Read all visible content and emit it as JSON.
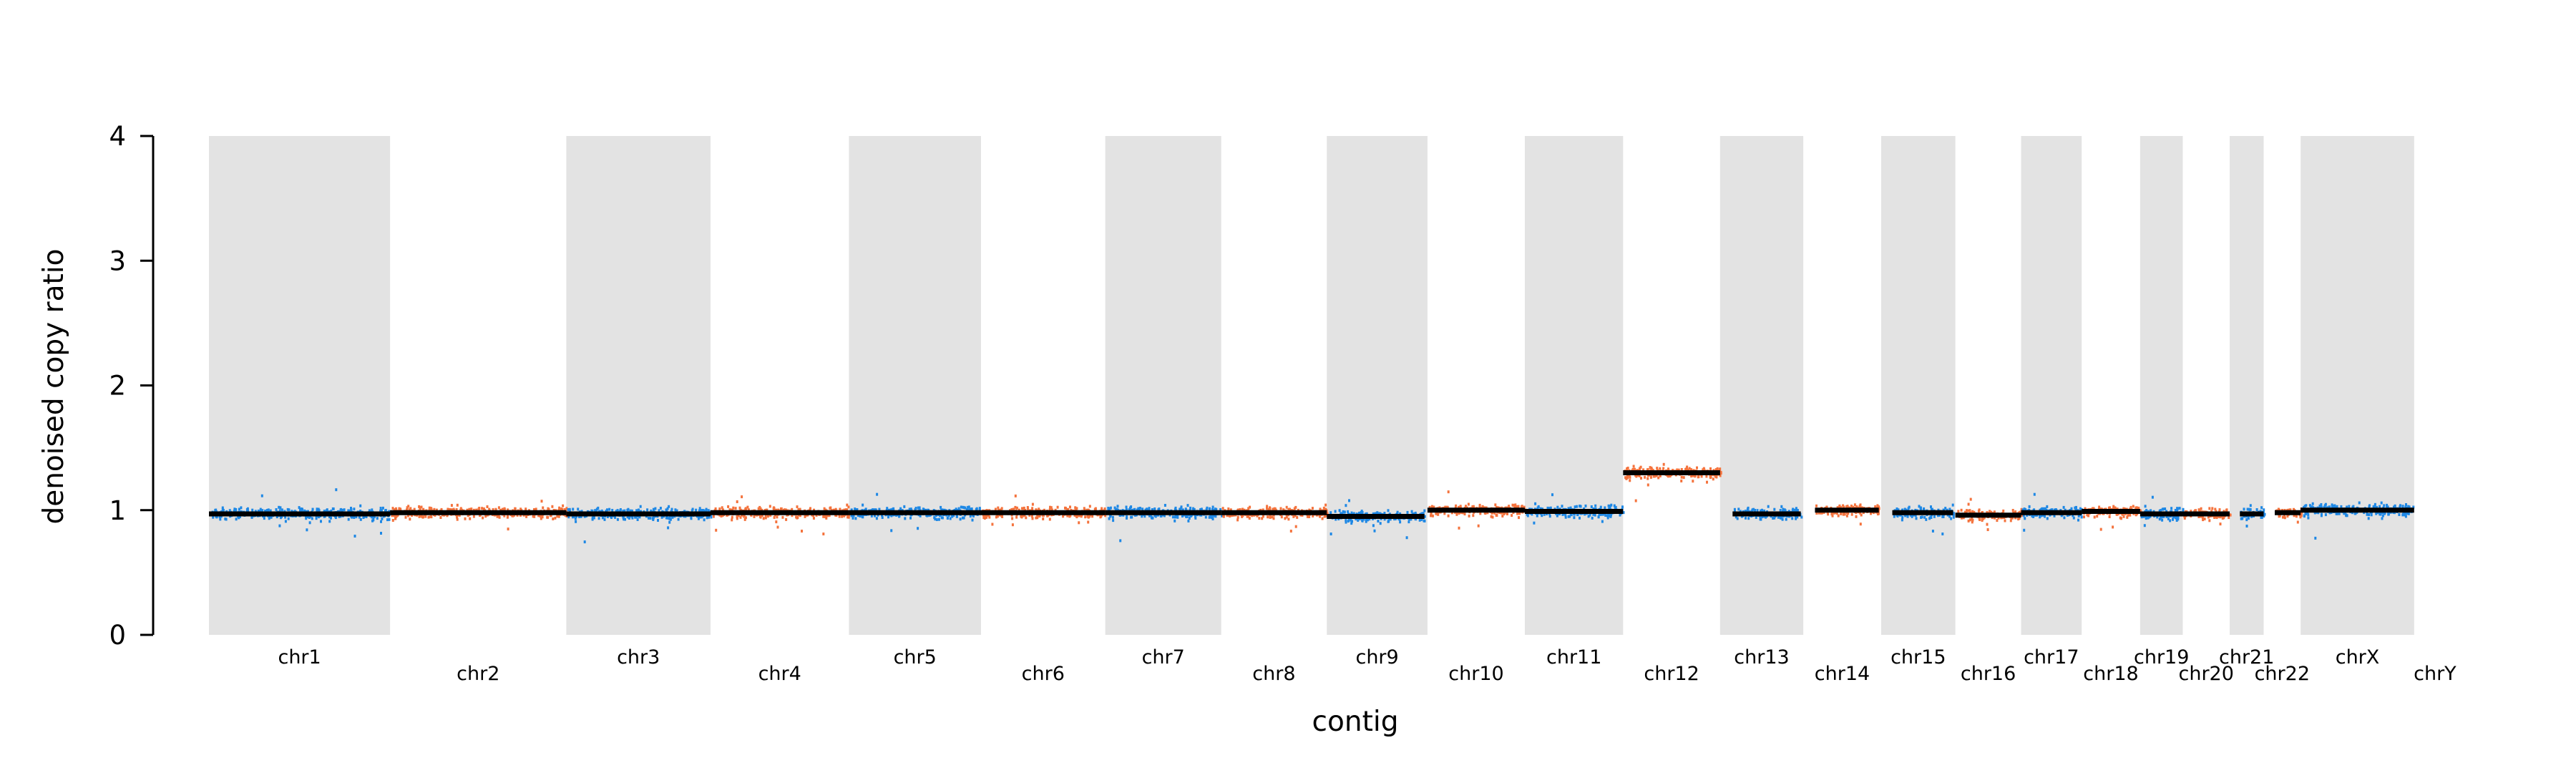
{
  "chart_data": {
    "type": "scatter",
    "title": "",
    "xlabel": "contig",
    "ylabel": "denoised copy ratio",
    "ylim": [
      0,
      4
    ],
    "yticks": [
      0,
      1,
      2,
      3,
      4
    ],
    "grid": false,
    "legend": "none",
    "colors": {
      "series_a": "#1e88e5",
      "series_b": "#f4733d",
      "segment": "#000000",
      "band": "#e3e3e3"
    },
    "contigs": [
      {
        "name": "chr1",
        "length_mb": 248.96,
        "segments": [
          {
            "start": 0,
            "end": 1,
            "value": 0.97
          }
        ]
      },
      {
        "name": "chr2",
        "length_mb": 242.19,
        "segments": [
          {
            "start": 0,
            "end": 1,
            "value": 0.98
          }
        ]
      },
      {
        "name": "chr3",
        "length_mb": 198.3,
        "segments": [
          {
            "start": 0,
            "end": 1,
            "value": 0.97
          }
        ]
      },
      {
        "name": "chr4",
        "length_mb": 190.21,
        "segments": [
          {
            "start": 0,
            "end": 1,
            "value": 0.98
          }
        ]
      },
      {
        "name": "chr5",
        "length_mb": 181.54,
        "segments": [
          {
            "start": 0,
            "end": 1,
            "value": 0.98
          }
        ]
      },
      {
        "name": "chr6",
        "length_mb": 170.81,
        "segments": [
          {
            "start": 0,
            "end": 1,
            "value": 0.98
          }
        ]
      },
      {
        "name": "chr7",
        "length_mb": 159.35,
        "segments": [
          {
            "start": 0,
            "end": 1,
            "value": 0.98
          }
        ]
      },
      {
        "name": "chr8",
        "length_mb": 145.14,
        "segments": [
          {
            "start": 0,
            "end": 1,
            "value": 0.98
          }
        ]
      },
      {
        "name": "chr9",
        "length_mb": 138.39,
        "segments": [
          {
            "start": 0,
            "end": 0.97,
            "value": 0.95
          }
        ]
      },
      {
        "name": "chr10",
        "length_mb": 133.8,
        "segments": [
          {
            "start": 0,
            "end": 1,
            "value": 1.0
          }
        ]
      },
      {
        "name": "chr11",
        "length_mb": 135.09,
        "segments": [
          {
            "start": 0,
            "end": 1,
            "value": 0.99
          }
        ]
      },
      {
        "name": "chr12",
        "length_mb": 133.28,
        "segments": [
          {
            "start": 0,
            "end": 1,
            "value": 1.3
          }
        ]
      },
      {
        "name": "chr13",
        "length_mb": 114.36,
        "segments": [
          {
            "start": 0.15,
            "end": 0.97,
            "value": 0.97
          }
        ]
      },
      {
        "name": "chr14",
        "length_mb": 107.04,
        "segments": [
          {
            "start": 0.15,
            "end": 0.97,
            "value": 1.0
          }
        ]
      },
      {
        "name": "chr15",
        "length_mb": 101.99,
        "segments": [
          {
            "start": 0.15,
            "end": 0.97,
            "value": 0.98
          }
        ]
      },
      {
        "name": "chr16",
        "length_mb": 90.34,
        "segments": [
          {
            "start": 0,
            "end": 1,
            "value": 0.96
          }
        ]
      },
      {
        "name": "chr17",
        "length_mb": 83.26,
        "segments": [
          {
            "start": 0,
            "end": 1,
            "value": 0.98
          }
        ]
      },
      {
        "name": "chr18",
        "length_mb": 80.37,
        "segments": [
          {
            "start": 0,
            "end": 1,
            "value": 0.99
          }
        ]
      },
      {
        "name": "chr19",
        "length_mb": 58.62,
        "segments": [
          {
            "start": 0,
            "end": 1,
            "value": 0.97
          }
        ]
      },
      {
        "name": "chr20",
        "length_mb": 64.44,
        "segments": [
          {
            "start": 0,
            "end": 1,
            "value": 0.97
          }
        ]
      },
      {
        "name": "chr21",
        "length_mb": 46.71,
        "segments": [
          {
            "start": 0.3,
            "end": 1,
            "value": 0.97
          }
        ]
      },
      {
        "name": "chr22",
        "length_mb": 50.82,
        "segments": [
          {
            "start": 0.3,
            "end": 1,
            "value": 0.98
          }
        ]
      },
      {
        "name": "chrX",
        "length_mb": 156.04,
        "segments": [
          {
            "start": 0,
            "end": 1,
            "value": 1.0
          }
        ]
      },
      {
        "name": "chrY",
        "length_mb": 57.23,
        "segments": []
      }
    ]
  }
}
